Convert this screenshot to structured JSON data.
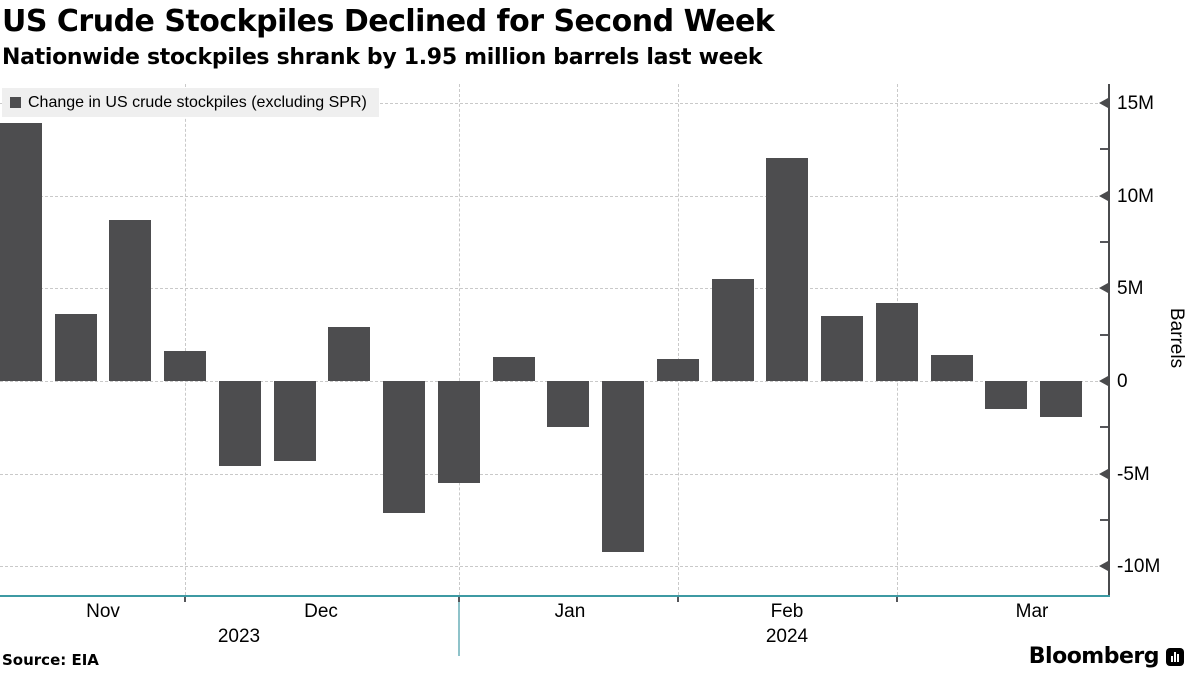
{
  "header": {
    "title": "US Crude Stockpiles Declined for Second Week",
    "subtitle": "Nationwide stockpiles shrank by 1.95 million barrels last week"
  },
  "legend": {
    "label": "Change in US crude stockpiles (excluding SPR)"
  },
  "footer": {
    "source": "Source: EIA",
    "brand": "Bloomberg"
  },
  "chart_data": {
    "type": "bar",
    "title": "US Crude Stockpiles Declined for Second Week",
    "subtitle": "Nationwide stockpiles shrank by 1.95 million barrels last week",
    "ylabel": "Barrels",
    "unit": "millions of barrels",
    "ylim": [
      -11.5,
      16
    ],
    "grid": "dashed",
    "legend_position": "top-left",
    "yticks": {
      "values": [
        15,
        10,
        5,
        0,
        -5,
        -10
      ],
      "labels": [
        "15M",
        "10M",
        "5M",
        "0",
        "-5M",
        "-10M"
      ]
    },
    "minor_yticks": [
      12.5,
      7.5,
      2.5,
      -2.5,
      -7.5
    ],
    "x_month_ticks": {
      "labels": [
        "Nov",
        "Dec",
        "Jan",
        "Feb",
        "Mar"
      ]
    },
    "x_year_ticks": {
      "labels": [
        "2023",
        "2024"
      ]
    },
    "series": [
      {
        "name": "Change in US crude stockpiles (excluding SPR)",
        "color": "#4d4d4f",
        "week_ending": [
          "2023-11-03",
          "2023-11-10",
          "2023-11-17",
          "2023-11-24",
          "2023-12-01",
          "2023-12-08",
          "2023-12-15",
          "2023-12-22",
          "2023-12-29",
          "2024-01-05",
          "2024-01-12",
          "2024-01-19",
          "2024-01-26",
          "2024-02-02",
          "2024-02-09",
          "2024-02-16",
          "2024-02-23",
          "2024-03-01",
          "2024-03-08",
          "2024-03-15"
        ],
        "values": [
          13.9,
          3.6,
          8.7,
          1.6,
          -4.6,
          -4.3,
          2.9,
          -7.1,
          -5.5,
          1.3,
          -2.5,
          -9.2,
          1.2,
          5.5,
          12.0,
          3.5,
          4.2,
          1.4,
          -1.5,
          -1.95
        ]
      }
    ],
    "colors": {
      "bar": "#4d4d4f",
      "x_axis": "#3d9aa3",
      "y_axis": "#4a4b4d",
      "gridline": "#c9c9c9",
      "year_separator": "#8fc3ca",
      "legend_bg": "#efefef"
    }
  }
}
